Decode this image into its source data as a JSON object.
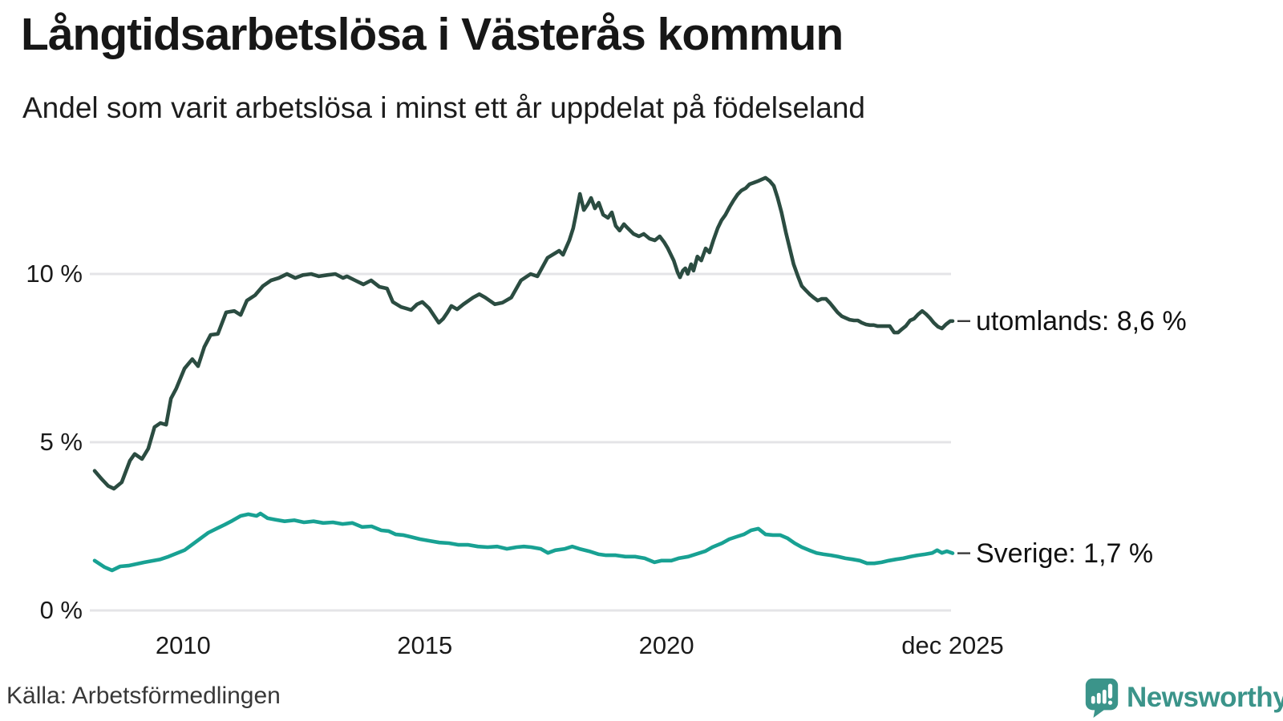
{
  "header": {
    "title": "Långtidsarbetslösa i Västerås kommun",
    "subtitle": "Andel som varit arbetslösa i minst ett år uppdelat på födelseland"
  },
  "footer": {
    "source": "Källa: Arbetsförmedlingen",
    "brand": "Newsworthy"
  },
  "colors": {
    "utomlands_line": "#2b4c41",
    "sverige_line": "#18a193",
    "grid": "#e4e4e7",
    "text": "#1a1a1a",
    "brand": "#3b948a"
  },
  "chart_data": {
    "type": "line",
    "title": "Långtidsarbetslösa i Västerås kommun",
    "subtitle": "Andel som varit arbetslösa i minst ett år uppdelat på födelseland",
    "grid": true,
    "legend_position": "right-end-labels",
    "x_range": [
      2008.17,
      2025.92
    ],
    "ylim": [
      0,
      13.6
    ],
    "y_ticks": [
      {
        "value": 0,
        "label": "0 %"
      },
      {
        "value": 5,
        "label": "5 %"
      },
      {
        "value": 10,
        "label": "10 %"
      }
    ],
    "x_ticks": [
      {
        "value": 2010,
        "label": "2010"
      },
      {
        "value": 2015,
        "label": "2015"
      },
      {
        "value": 2020,
        "label": "2020"
      },
      {
        "value": 2025.92,
        "label": "dec 2025"
      }
    ],
    "series": [
      {
        "name": "utomlands",
        "label": "utomlands: 8,6 %",
        "end_value": 8.6,
        "color": "#2b4c41",
        "points": [
          [
            2008.17,
            4.15
          ],
          [
            2008.32,
            3.9
          ],
          [
            2008.45,
            3.7
          ],
          [
            2008.57,
            3.62
          ],
          [
            2008.73,
            3.81
          ],
          [
            2008.9,
            4.45
          ],
          [
            2009.0,
            4.65
          ],
          [
            2009.15,
            4.5
          ],
          [
            2009.28,
            4.81
          ],
          [
            2009.41,
            5.45
          ],
          [
            2009.53,
            5.57
          ],
          [
            2009.65,
            5.52
          ],
          [
            2009.75,
            6.3
          ],
          [
            2009.86,
            6.6
          ],
          [
            2010.03,
            7.19
          ],
          [
            2010.19,
            7.47
          ],
          [
            2010.31,
            7.26
          ],
          [
            2010.44,
            7.83
          ],
          [
            2010.57,
            8.19
          ],
          [
            2010.72,
            8.22
          ],
          [
            2010.89,
            8.86
          ],
          [
            2011.06,
            8.9
          ],
          [
            2011.19,
            8.78
          ],
          [
            2011.32,
            9.21
          ],
          [
            2011.49,
            9.37
          ],
          [
            2011.65,
            9.64
          ],
          [
            2011.82,
            9.81
          ],
          [
            2011.98,
            9.88
          ],
          [
            2012.15,
            10.0
          ],
          [
            2012.32,
            9.88
          ],
          [
            2012.48,
            9.97
          ],
          [
            2012.65,
            10.0
          ],
          [
            2012.81,
            9.93
          ],
          [
            2012.98,
            9.97
          ],
          [
            2013.15,
            10.0
          ],
          [
            2013.31,
            9.88
          ],
          [
            2013.39,
            9.93
          ],
          [
            2013.56,
            9.81
          ],
          [
            2013.73,
            9.69
          ],
          [
            2013.89,
            9.81
          ],
          [
            2014.06,
            9.62
          ],
          [
            2014.22,
            9.57
          ],
          [
            2014.34,
            9.17
          ],
          [
            2014.51,
            9.02
          ],
          [
            2014.72,
            8.93
          ],
          [
            2014.84,
            9.1
          ],
          [
            2014.95,
            9.17
          ],
          [
            2015.09,
            8.98
          ],
          [
            2015.29,
            8.55
          ],
          [
            2015.38,
            8.67
          ],
          [
            2015.47,
            8.86
          ],
          [
            2015.55,
            9.05
          ],
          [
            2015.67,
            8.95
          ],
          [
            2015.8,
            9.1
          ],
          [
            2016.0,
            9.3
          ],
          [
            2016.13,
            9.4
          ],
          [
            2016.25,
            9.3
          ],
          [
            2016.45,
            9.1
          ],
          [
            2016.61,
            9.15
          ],
          [
            2016.79,
            9.3
          ],
          [
            2016.99,
            9.81
          ],
          [
            2017.19,
            10.0
          ],
          [
            2017.33,
            9.93
          ],
          [
            2017.54,
            10.48
          ],
          [
            2017.78,
            10.69
          ],
          [
            2017.86,
            10.57
          ],
          [
            2017.99,
            11.0
          ],
          [
            2018.07,
            11.36
          ],
          [
            2018.12,
            11.71
          ],
          [
            2018.21,
            12.38
          ],
          [
            2018.29,
            11.9
          ],
          [
            2018.37,
            12.07
          ],
          [
            2018.44,
            12.26
          ],
          [
            2018.52,
            11.95
          ],
          [
            2018.6,
            12.12
          ],
          [
            2018.69,
            11.76
          ],
          [
            2018.79,
            11.67
          ],
          [
            2018.87,
            11.83
          ],
          [
            2018.95,
            11.43
          ],
          [
            2019.03,
            11.29
          ],
          [
            2019.12,
            11.48
          ],
          [
            2019.2,
            11.36
          ],
          [
            2019.32,
            11.19
          ],
          [
            2019.43,
            11.12
          ],
          [
            2019.53,
            11.19
          ],
          [
            2019.65,
            11.05
          ],
          [
            2019.76,
            11.0
          ],
          [
            2019.86,
            11.12
          ],
          [
            2019.95,
            10.95
          ],
          [
            2020.03,
            10.76
          ],
          [
            2020.15,
            10.4
          ],
          [
            2020.23,
            10.05
          ],
          [
            2020.28,
            9.9
          ],
          [
            2020.34,
            10.1
          ],
          [
            2020.39,
            10.17
          ],
          [
            2020.44,
            10.0
          ],
          [
            2020.51,
            10.29
          ],
          [
            2020.56,
            10.1
          ],
          [
            2020.64,
            10.52
          ],
          [
            2020.72,
            10.4
          ],
          [
            2020.81,
            10.76
          ],
          [
            2020.89,
            10.64
          ],
          [
            2020.97,
            11.0
          ],
          [
            2021.06,
            11.36
          ],
          [
            2021.14,
            11.6
          ],
          [
            2021.22,
            11.76
          ],
          [
            2021.31,
            12.0
          ],
          [
            2021.39,
            12.19
          ],
          [
            2021.47,
            12.36
          ],
          [
            2021.55,
            12.48
          ],
          [
            2021.64,
            12.55
          ],
          [
            2021.72,
            12.67
          ],
          [
            2021.8,
            12.71
          ],
          [
            2021.89,
            12.76
          ],
          [
            2021.97,
            12.81
          ],
          [
            2022.05,
            12.86
          ],
          [
            2022.14,
            12.76
          ],
          [
            2022.22,
            12.62
          ],
          [
            2022.3,
            12.26
          ],
          [
            2022.38,
            11.83
          ],
          [
            2022.47,
            11.24
          ],
          [
            2022.55,
            10.76
          ],
          [
            2022.63,
            10.29
          ],
          [
            2022.72,
            9.93
          ],
          [
            2022.8,
            9.64
          ],
          [
            2022.88,
            9.52
          ],
          [
            2022.96,
            9.4
          ],
          [
            2023.05,
            9.29
          ],
          [
            2023.13,
            9.21
          ],
          [
            2023.21,
            9.26
          ],
          [
            2023.3,
            9.26
          ],
          [
            2023.38,
            9.14
          ],
          [
            2023.46,
            9.0
          ],
          [
            2023.54,
            8.86
          ],
          [
            2023.63,
            8.74
          ],
          [
            2023.71,
            8.69
          ],
          [
            2023.79,
            8.64
          ],
          [
            2023.88,
            8.62
          ],
          [
            2023.96,
            8.62
          ],
          [
            2024.04,
            8.55
          ],
          [
            2024.13,
            8.5
          ],
          [
            2024.21,
            8.48
          ],
          [
            2024.29,
            8.48
          ],
          [
            2024.37,
            8.45
          ],
          [
            2024.46,
            8.45
          ],
          [
            2024.54,
            8.45
          ],
          [
            2024.62,
            8.45
          ],
          [
            2024.71,
            8.26
          ],
          [
            2024.79,
            8.26
          ],
          [
            2024.87,
            8.36
          ],
          [
            2024.95,
            8.45
          ],
          [
            2025.04,
            8.62
          ],
          [
            2025.12,
            8.67
          ],
          [
            2025.2,
            8.79
          ],
          [
            2025.29,
            8.9
          ],
          [
            2025.37,
            8.81
          ],
          [
            2025.45,
            8.69
          ],
          [
            2025.53,
            8.55
          ],
          [
            2025.62,
            8.43
          ],
          [
            2025.7,
            8.38
          ],
          [
            2025.78,
            8.5
          ],
          [
            2025.87,
            8.6
          ],
          [
            2025.92,
            8.6
          ]
        ]
      },
      {
        "name": "sverige",
        "label": "Sverige: 1,7 %",
        "end_value": 1.7,
        "color": "#18a193",
        "points": [
          [
            2008.17,
            1.48
          ],
          [
            2008.37,
            1.29
          ],
          [
            2008.53,
            1.19
          ],
          [
            2008.7,
            1.31
          ],
          [
            2008.87,
            1.33
          ],
          [
            2009.2,
            1.43
          ],
          [
            2009.53,
            1.52
          ],
          [
            2009.7,
            1.6
          ],
          [
            2010.03,
            1.79
          ],
          [
            2010.36,
            2.14
          ],
          [
            2010.52,
            2.31
          ],
          [
            2010.69,
            2.43
          ],
          [
            2010.86,
            2.55
          ],
          [
            2011.02,
            2.67
          ],
          [
            2011.19,
            2.81
          ],
          [
            2011.35,
            2.86
          ],
          [
            2011.52,
            2.81
          ],
          [
            2011.6,
            2.88
          ],
          [
            2011.75,
            2.74
          ],
          [
            2011.9,
            2.7
          ],
          [
            2012.1,
            2.65
          ],
          [
            2012.3,
            2.68
          ],
          [
            2012.5,
            2.62
          ],
          [
            2012.7,
            2.65
          ],
          [
            2012.9,
            2.6
          ],
          [
            2013.1,
            2.62
          ],
          [
            2013.3,
            2.57
          ],
          [
            2013.5,
            2.6
          ],
          [
            2013.7,
            2.48
          ],
          [
            2013.9,
            2.5
          ],
          [
            2014.1,
            2.38
          ],
          [
            2014.25,
            2.36
          ],
          [
            2014.4,
            2.26
          ],
          [
            2014.55,
            2.24
          ],
          [
            2014.7,
            2.19
          ],
          [
            2014.9,
            2.12
          ],
          [
            2015.1,
            2.07
          ],
          [
            2015.3,
            2.02
          ],
          [
            2015.5,
            2.0
          ],
          [
            2015.7,
            1.95
          ],
          [
            2015.9,
            1.95
          ],
          [
            2016.1,
            1.9
          ],
          [
            2016.3,
            1.88
          ],
          [
            2016.5,
            1.9
          ],
          [
            2016.7,
            1.83
          ],
          [
            2016.9,
            1.88
          ],
          [
            2017.05,
            1.9
          ],
          [
            2017.2,
            1.88
          ],
          [
            2017.4,
            1.83
          ],
          [
            2017.55,
            1.71
          ],
          [
            2017.7,
            1.79
          ],
          [
            2017.9,
            1.83
          ],
          [
            2018.05,
            1.9
          ],
          [
            2018.2,
            1.83
          ],
          [
            2018.4,
            1.76
          ],
          [
            2018.6,
            1.67
          ],
          [
            2018.75,
            1.64
          ],
          [
            2018.95,
            1.64
          ],
          [
            2019.15,
            1.6
          ],
          [
            2019.35,
            1.6
          ],
          [
            2019.55,
            1.55
          ],
          [
            2019.75,
            1.43
          ],
          [
            2019.9,
            1.48
          ],
          [
            2020.1,
            1.48
          ],
          [
            2020.25,
            1.55
          ],
          [
            2020.45,
            1.6
          ],
          [
            2020.6,
            1.67
          ],
          [
            2020.8,
            1.76
          ],
          [
            2020.95,
            1.88
          ],
          [
            2021.15,
            2.0
          ],
          [
            2021.3,
            2.12
          ],
          [
            2021.45,
            2.19
          ],
          [
            2021.6,
            2.26
          ],
          [
            2021.75,
            2.38
          ],
          [
            2021.9,
            2.43
          ],
          [
            2022.05,
            2.26
          ],
          [
            2022.2,
            2.24
          ],
          [
            2022.35,
            2.24
          ],
          [
            2022.5,
            2.15
          ],
          [
            2022.65,
            2.0
          ],
          [
            2022.8,
            1.88
          ],
          [
            2022.95,
            1.79
          ],
          [
            2023.1,
            1.71
          ],
          [
            2023.25,
            1.67
          ],
          [
            2023.4,
            1.64
          ],
          [
            2023.55,
            1.6
          ],
          [
            2023.7,
            1.55
          ],
          [
            2023.85,
            1.52
          ],
          [
            2024.0,
            1.48
          ],
          [
            2024.15,
            1.4
          ],
          [
            2024.3,
            1.4
          ],
          [
            2024.45,
            1.43
          ],
          [
            2024.6,
            1.48
          ],
          [
            2024.75,
            1.52
          ],
          [
            2024.9,
            1.55
          ],
          [
            2025.05,
            1.6
          ],
          [
            2025.2,
            1.64
          ],
          [
            2025.35,
            1.67
          ],
          [
            2025.5,
            1.71
          ],
          [
            2025.6,
            1.79
          ],
          [
            2025.7,
            1.71
          ],
          [
            2025.8,
            1.76
          ],
          [
            2025.92,
            1.7
          ]
        ]
      }
    ]
  }
}
